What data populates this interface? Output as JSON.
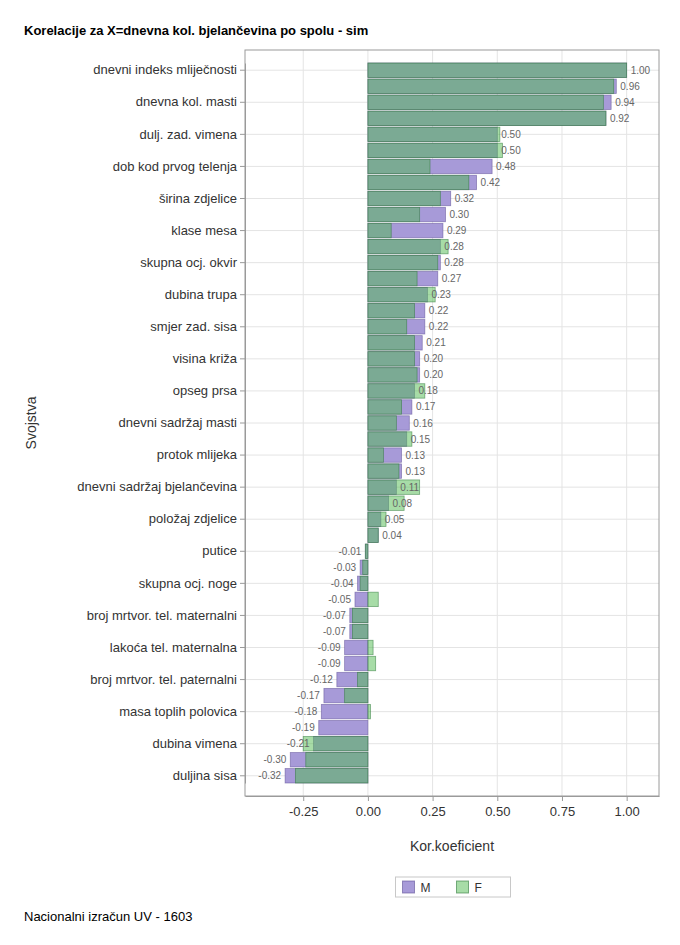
{
  "chart_data": {
    "type": "bar",
    "orientation": "horizontal",
    "title": "Korelacije za X=dnevna kol. bjelančevina po spolu - sim",
    "xlabel": "Kor.koeficient",
    "ylabel": "Svojstva",
    "annotations": [
      "Nacionalni izračun UV - 1603"
    ],
    "categories": [
      "dnevni indeks mliječnosti",
      null,
      "dnevna kol. masti",
      null,
      "dulj. zad. vimena",
      null,
      "dob kod prvog telenja",
      null,
      "širina zdjelice",
      null,
      "klase mesa",
      null,
      "skupna ocj. okvir",
      null,
      "dubina trupa",
      null,
      "smjer zad. sisa",
      null,
      "visina križa",
      null,
      "opseg prsa",
      null,
      "dnevni sadržaj masti",
      null,
      "protok mlijeka",
      null,
      "dnevni sadržaj bjelančevina",
      null,
      "položaj zdjelice",
      null,
      "putice",
      null,
      "skupna ocj. noge",
      null,
      "broj mrtvor. tel. maternalni",
      null,
      "lakoća tel. maternalna",
      null,
      "broj mrtvor. tel. paternalni",
      null,
      "masa toplih polovica",
      null,
      "dubina vimena",
      null,
      "duljina sisa"
    ],
    "series": [
      {
        "name": "M",
        "color": "#a79ad8",
        "data_labels": true,
        "values": [
          1.0,
          0.96,
          0.94,
          0.92,
          0.5,
          0.5,
          0.48,
          0.42,
          0.32,
          0.3,
          0.29,
          0.28,
          0.28,
          0.27,
          0.23,
          0.22,
          0.22,
          0.21,
          0.2,
          0.2,
          0.18,
          0.17,
          0.16,
          0.15,
          0.13,
          0.13,
          0.11,
          0.08,
          0.05,
          0.04,
          -0.01,
          -0.03,
          -0.04,
          -0.05,
          -0.07,
          -0.07,
          -0.09,
          -0.09,
          -0.12,
          -0.17,
          -0.18,
          -0.19,
          -0.21,
          -0.3,
          -0.32
        ],
        "value_labels": [
          "1.00",
          "0.96",
          "0.94",
          "0.92",
          "0.50",
          "0.50",
          "0.48",
          "0.42",
          "0.32",
          "0.30",
          "0.29",
          "0.28",
          "0.28",
          "0.27",
          "0.23",
          "0.22",
          "0.22",
          "0.21",
          "0.20",
          "0.20",
          "0.18",
          "0.17",
          "0.16",
          "0.15",
          "0.13",
          "0.13",
          "0.11",
          "0.08",
          "0.05",
          "0.04",
          "-0.01",
          "-0.03",
          "-0.04",
          "-0.05",
          "-0.07",
          "-0.07",
          "-0.09",
          "-0.09",
          "-0.12",
          "-0.17",
          "-0.18",
          "-0.19",
          "-0.21",
          "-0.30",
          "-0.32"
        ]
      },
      {
        "name": "F",
        "color": "#4fb94f",
        "values": [
          1.0,
          0.95,
          0.91,
          0.92,
          0.51,
          0.52,
          0.24,
          0.39,
          0.28,
          0.2,
          0.09,
          0.31,
          0.27,
          0.19,
          0.26,
          0.18,
          0.15,
          0.18,
          0.18,
          0.19,
          0.22,
          0.13,
          0.11,
          0.17,
          0.06,
          0.12,
          0.2,
          0.14,
          0.07,
          0.04,
          -0.01,
          -0.02,
          -0.03,
          0.04,
          -0.06,
          -0.06,
          0.02,
          0.03,
          -0.04,
          -0.09,
          0.01,
          0.0,
          -0.25,
          -0.24,
          -0.28
        ]
      }
    ],
    "xlim": [
      -0.475,
      1.125
    ],
    "xticks": [
      -0.25,
      {
        "value": 0,
        "label": "0.00"
      },
      0.25,
      {
        "value": 0.5,
        "label": "0.50"
      },
      0.75,
      {
        "value": 1,
        "label": "1.00"
      }
    ],
    "grid": true,
    "legend": "bottom"
  }
}
